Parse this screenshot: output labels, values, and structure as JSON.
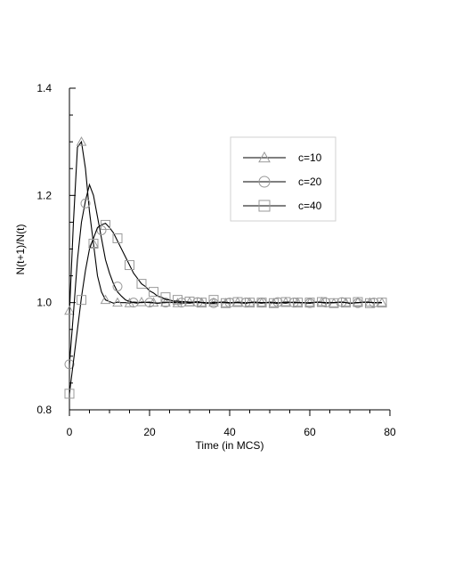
{
  "chart_data": {
    "type": "line",
    "xlabel": "Time (in MCS)",
    "ylabel": "N(t+1)/N(t)",
    "xlim": [
      0,
      80
    ],
    "ylim": [
      0.8,
      1.4
    ],
    "x_ticks": [
      0,
      20,
      40,
      60,
      80
    ],
    "y_ticks": [
      0.8,
      1.0,
      1.2,
      1.4
    ],
    "x_tick_labels": [
      "0",
      "20",
      "40",
      "60",
      "80"
    ],
    "y_tick_labels": [
      "0.8",
      "1.0",
      "1.2",
      "1.4"
    ],
    "legend_position": "top-right",
    "grid": false,
    "series": [
      {
        "name": "c=10",
        "marker": "triangle",
        "color": "#000000",
        "marker_color": "#999999",
        "x": [
          0,
          1,
          2,
          3,
          4,
          5,
          6,
          7,
          8,
          9,
          10,
          11,
          12,
          13,
          14,
          15,
          16,
          18,
          20,
          22,
          24,
          26,
          28,
          30,
          32,
          34,
          36,
          38,
          40,
          42,
          44,
          46,
          48,
          50,
          52,
          54,
          56,
          58,
          60,
          62,
          64,
          66,
          68,
          70,
          72,
          74,
          76,
          78
        ],
        "y": [
          0.98,
          1.15,
          1.29,
          1.3,
          1.25,
          1.17,
          1.11,
          1.05,
          1.02,
          1.005,
          1.002,
          0.999,
          1.001,
          1.0,
          1.0,
          0.999,
          1.001,
          1.0,
          1.001,
          0.999,
          1.0,
          1.001,
          0.999,
          1.0,
          1.002,
          0.998,
          1.001,
          1.0,
          0.999,
          1.001,
          1.0,
          1.0,
          0.999,
          1.001,
          1.0,
          0.999,
          1.001,
          1.0,
          1.0,
          1.001,
          0.999,
          1.0,
          1.001,
          0.999,
          1.0,
          1.001,
          1.0,
          1.0
        ],
        "marker_x": [
          0,
          3,
          6,
          9,
          12,
          15,
          18,
          21,
          24,
          27,
          30,
          33,
          36,
          39,
          42,
          45,
          48,
          51,
          54,
          57,
          60,
          63,
          66,
          69,
          72,
          75,
          78
        ],
        "marker_y": [
          0.985,
          1.3,
          1.11,
          1.005,
          1.0,
          0.999,
          1.001,
          1.0,
          1.0,
          0.999,
          1.001,
          1.0,
          1.0,
          0.999,
          1.001,
          1.0,
          1.0,
          0.999,
          1.001,
          1.0,
          1.0,
          1.001,
          0.999,
          1.0,
          1.001,
          1.0,
          1.0
        ]
      },
      {
        "name": "c=20",
        "marker": "circle",
        "color": "#000000",
        "marker_color": "#999999",
        "x": [
          0,
          1,
          2,
          3,
          4,
          5,
          6,
          7,
          8,
          9,
          10,
          11,
          12,
          13,
          14,
          15,
          16,
          17,
          18,
          20,
          22,
          24,
          26,
          28,
          30,
          32,
          34,
          36,
          38,
          40,
          42,
          44,
          46,
          48,
          50,
          52,
          54,
          56,
          58,
          60,
          62,
          64,
          66,
          68,
          70,
          72,
          74,
          76,
          78
        ],
        "y": [
          0.885,
          0.98,
          1.08,
          1.15,
          1.19,
          1.22,
          1.2,
          1.16,
          1.12,
          1.08,
          1.055,
          1.035,
          1.02,
          1.012,
          1.005,
          1.002,
          1.0,
          0.999,
          1.001,
          1.0,
          0.999,
          1.001,
          1.0,
          1.0,
          0.999,
          1.001,
          1.0,
          0.999,
          1.001,
          1.0,
          1.0,
          0.999,
          1.001,
          1.0,
          1.0,
          0.999,
          1.001,
          1.0,
          1.0,
          0.999,
          1.001,
          1.0,
          1.0,
          1.001,
          0.999,
          1.0,
          1.001,
          1.0,
          1.0
        ],
        "marker_x": [
          0,
          4,
          8,
          12,
          16,
          20,
          24,
          28,
          32,
          36,
          40,
          44,
          48,
          52,
          56,
          60,
          64,
          68,
          72,
          76
        ],
        "marker_y": [
          0.885,
          1.185,
          1.135,
          1.03,
          1.0,
          1.0,
          1.0,
          1.0,
          1.001,
          0.999,
          1.0,
          1.0,
          1.0,
          1.001,
          1.0,
          0.999,
          1.0,
          1.001,
          0.999,
          1.0
        ]
      },
      {
        "name": "c=40",
        "marker": "square",
        "color": "#000000",
        "marker_color": "#999999",
        "x": [
          0,
          1,
          2,
          3,
          4,
          5,
          6,
          7,
          8,
          9,
          10,
          11,
          12,
          13,
          14,
          15,
          16,
          17,
          18,
          19,
          20,
          21,
          22,
          23,
          24,
          25,
          26,
          28,
          30,
          32,
          34,
          36,
          38,
          40,
          42,
          44,
          46,
          48,
          50,
          52,
          54,
          56,
          58,
          60,
          62,
          64,
          66,
          68,
          70,
          72,
          74,
          76,
          78
        ],
        "y": [
          0.83,
          0.89,
          0.95,
          1.01,
          1.06,
          1.1,
          1.12,
          1.14,
          1.145,
          1.148,
          1.14,
          1.13,
          1.115,
          1.1,
          1.085,
          1.07,
          1.055,
          1.045,
          1.035,
          1.03,
          1.022,
          1.018,
          1.012,
          1.01,
          1.006,
          1.005,
          1.003,
          1.002,
          1.001,
          1.0,
          1.0,
          0.999,
          1.001,
          1.0,
          1.0,
          0.999,
          1.001,
          1.0,
          1.0,
          0.999,
          1.001,
          1.0,
          1.0,
          0.999,
          1.001,
          1.0,
          1.0,
          1.001,
          0.999,
          1.0,
          1.001,
          1.0,
          1.0
        ],
        "marker_x": [
          0,
          3,
          6,
          9,
          12,
          15,
          18,
          21,
          24,
          27,
          30,
          33,
          36,
          39,
          42,
          45,
          48,
          51,
          54,
          57,
          60,
          63,
          66,
          69,
          72,
          75,
          78
        ],
        "marker_y": [
          0.83,
          1.005,
          1.11,
          1.145,
          1.12,
          1.07,
          1.035,
          1.02,
          1.01,
          1.005,
          1.002,
          1.0,
          1.005,
          0.999,
          1.001,
          1.0,
          1.0,
          0.999,
          1.001,
          1.0,
          1.0,
          1.001,
          0.999,
          1.0,
          1.001,
          0.999,
          1.0
        ]
      }
    ]
  }
}
